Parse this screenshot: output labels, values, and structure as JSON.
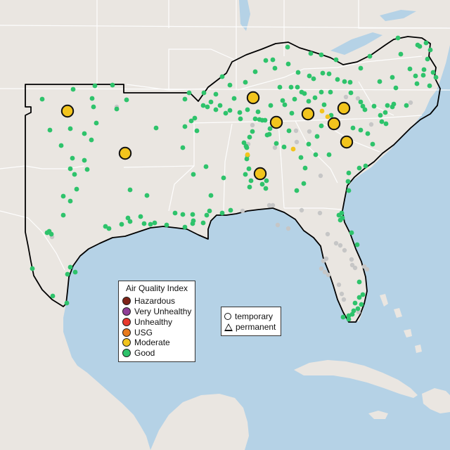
{
  "legend": {
    "title": "Air Quality Index",
    "categories": [
      {
        "label": "Hazardous",
        "color": "#7e2317"
      },
      {
        "label": "Very Unhealthy",
        "color": "#8f3f97"
      },
      {
        "label": "Unhealthy",
        "color": "#e8392d"
      },
      {
        "label": "USG",
        "color": "#e87a1c"
      },
      {
        "label": "Moderate",
        "color": "#f2c41d"
      },
      {
        "label": "Good",
        "color": "#2ec36b"
      }
    ]
  },
  "type_legend": {
    "temporary": "temporary",
    "permanent": "permanent"
  },
  "colors": {
    "land": "#eae6e1",
    "water": "#b5d2e6",
    "border": "#ffffff",
    "region_outline": "#000000",
    "no_data": "#c6c6c6"
  }
}
